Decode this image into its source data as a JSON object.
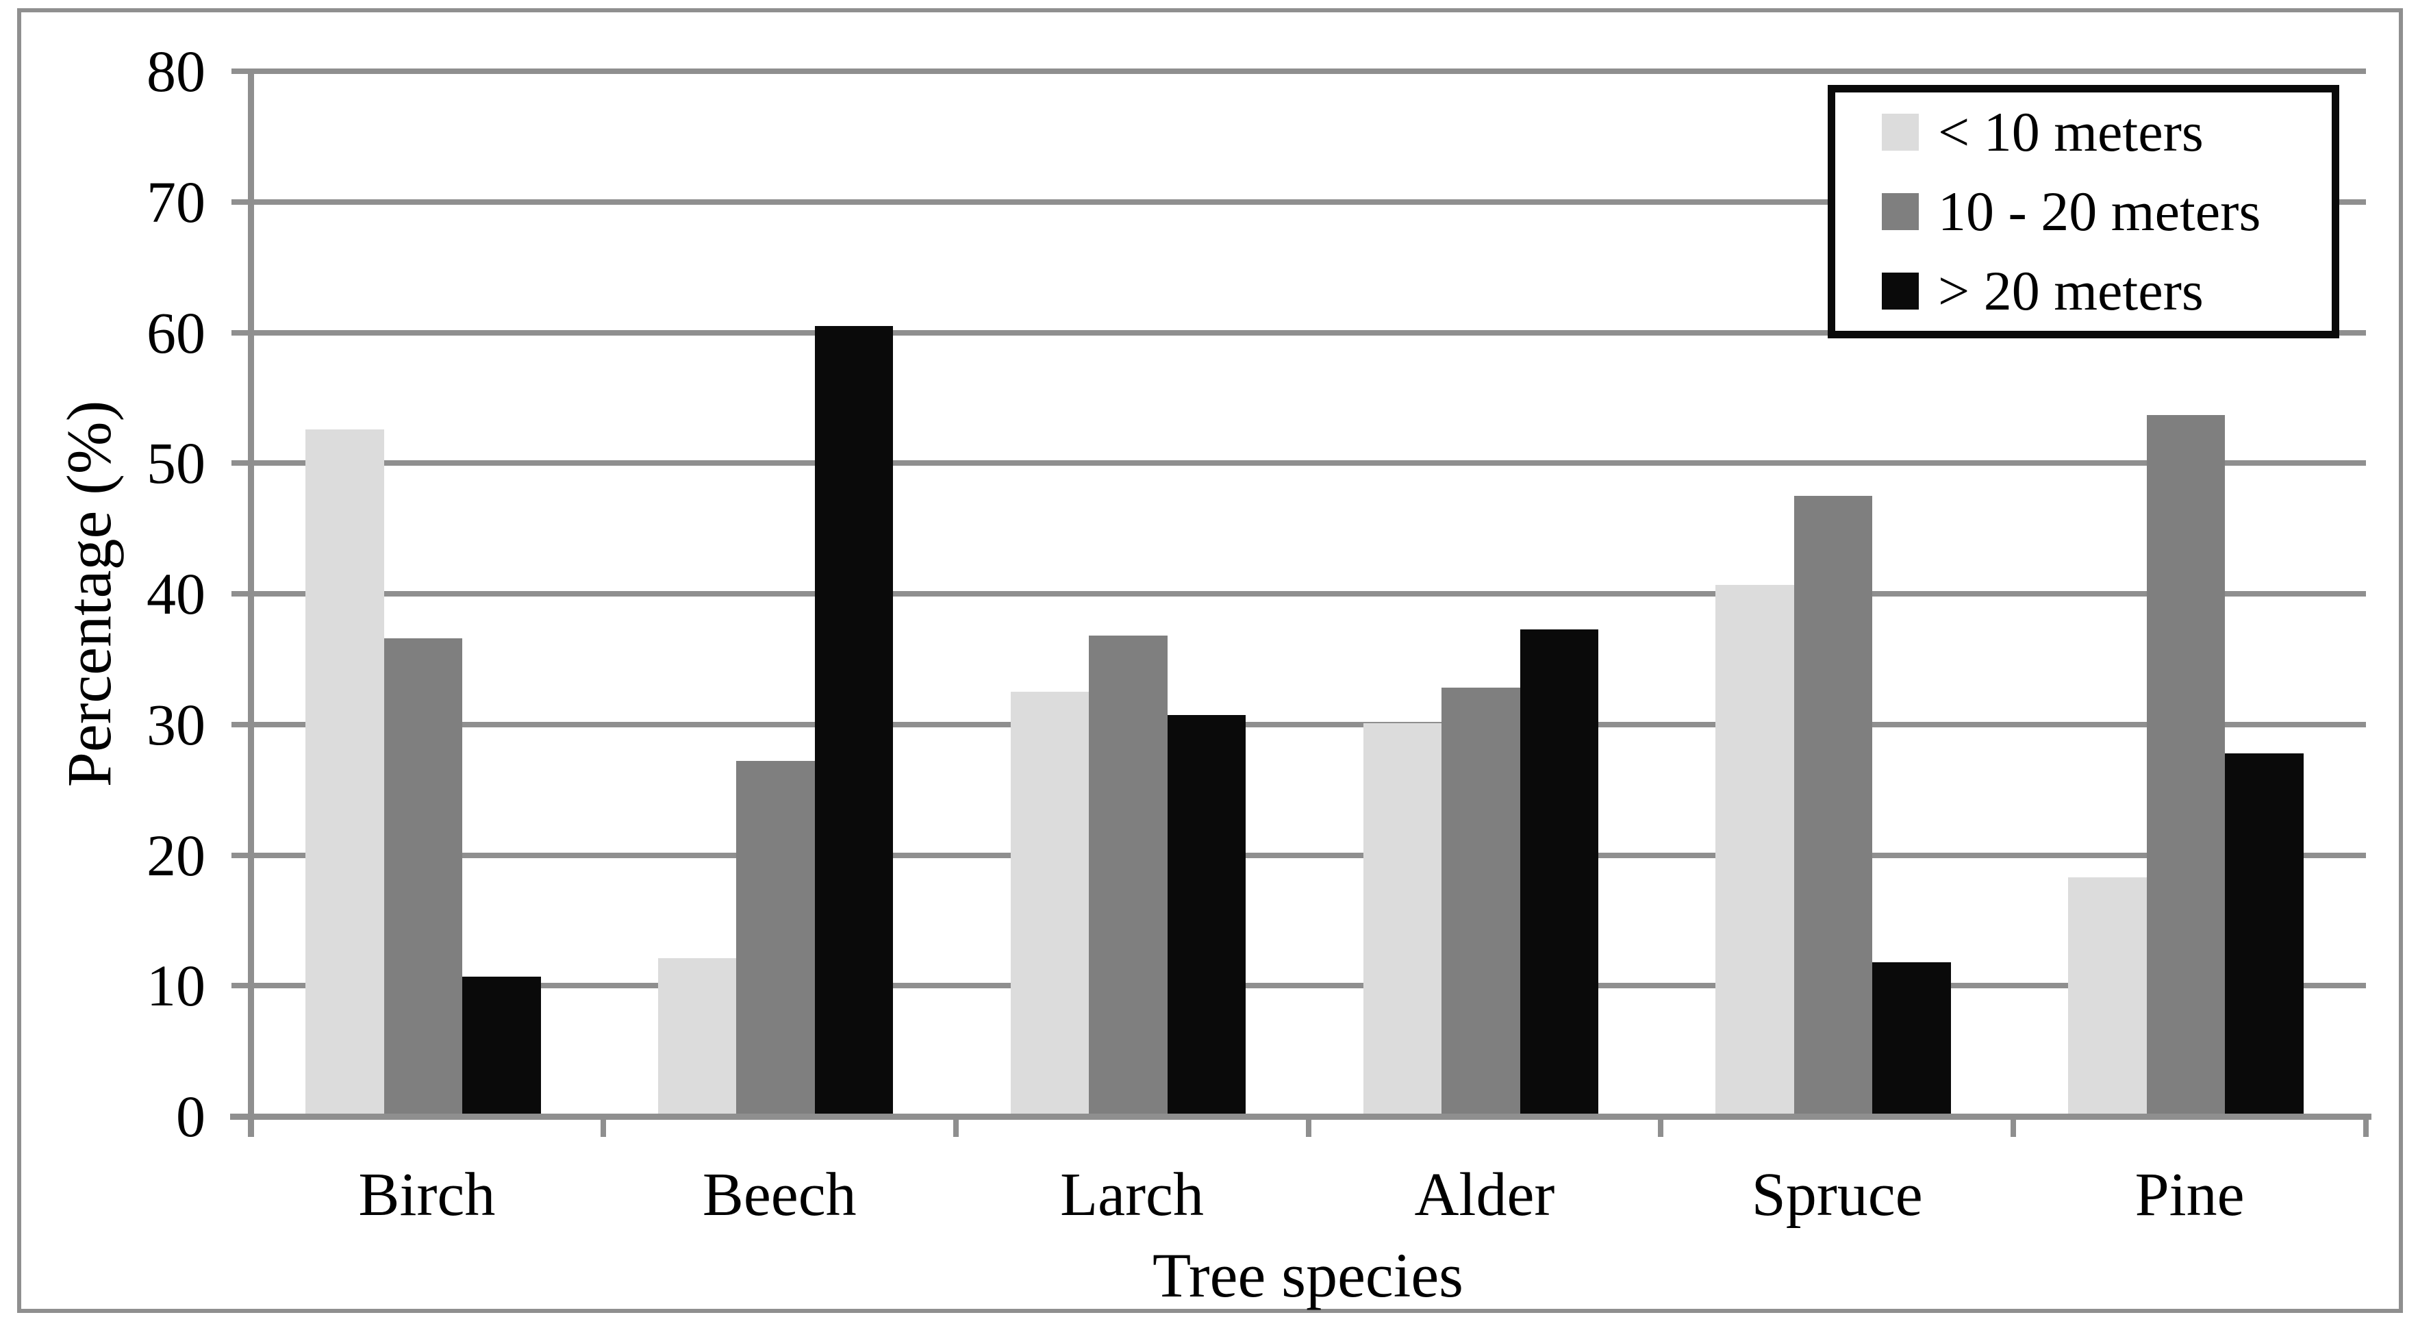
{
  "figure": {
    "kind": "grouped-bar-chart"
  },
  "y_axis": {
    "title": "Percentage (%)",
    "min": 0,
    "max": 80,
    "step": 10,
    "tick_labels": [
      "0",
      "10",
      "20",
      "30",
      "40",
      "50",
      "60",
      "70",
      "80"
    ]
  },
  "x_axis": {
    "title": "Tree species",
    "categories": [
      "Birch",
      "Beech",
      "Larch",
      "Alder",
      "Spruce",
      "Pine"
    ]
  },
  "legend": {
    "items": [
      {
        "label": "< 10 meters",
        "color": "#dcdcdc"
      },
      {
        "label": "10 - 20 meters",
        "color": "#7f7f7f"
      },
      {
        "label": "> 20 meters",
        "color": "#0a0a0a"
      }
    ]
  },
  "colors": {
    "background": "#ffffff",
    "gridline": "#8f8f8f",
    "axis": "#8f8f8f",
    "frame": "#8f8f8f",
    "legend_border": "#0a0a0a",
    "text": "#000000"
  },
  "chart_data": {
    "type": "bar",
    "title": "",
    "xlabel": "Tree species",
    "ylabel": "Percentage (%)",
    "ylim": [
      0,
      80
    ],
    "ytick_step": 10,
    "grid": true,
    "legend_position": "top-right",
    "categories": [
      "Birch",
      "Beech",
      "Larch",
      "Alder",
      "Spruce",
      "Pine"
    ],
    "series": [
      {
        "name": "< 10 meters",
        "color": "#dcdcdc",
        "values": [
          52.6,
          12.1,
          32.5,
          30.1,
          40.7,
          18.3
        ]
      },
      {
        "name": "10 - 20 meters",
        "color": "#7f7f7f",
        "values": [
          36.6,
          27.2,
          36.8,
          32.8,
          47.5,
          53.7
        ]
      },
      {
        "name": "> 20 meters",
        "color": "#0a0a0a",
        "values": [
          10.7,
          60.5,
          30.7,
          37.3,
          11.8,
          27.8
        ]
      }
    ]
  }
}
